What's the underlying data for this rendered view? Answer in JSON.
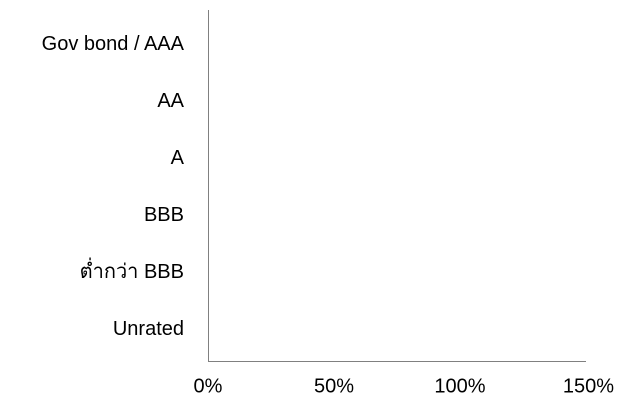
{
  "chart_data": {
    "type": "bar",
    "orientation": "horizontal",
    "categories": [
      "Gov bond / AAA",
      "AA",
      "A",
      "BBB",
      "ต่ำกว่า BBB",
      "Unrated"
    ],
    "series": [
      {
        "values": [
          0,
          0,
          0,
          0,
          0,
          0
        ]
      }
    ],
    "xlim": [
      0,
      1.5
    ],
    "x_ticks": [
      0,
      0.5,
      1.0,
      1.5
    ],
    "x_tick_labels": [
      "0%",
      "50%",
      "100%",
      "150%"
    ],
    "title": "",
    "xlabel": "",
    "ylabel": "",
    "grid": false,
    "legend": "none",
    "colors": {
      "axis": "#808080",
      "text": "#000000",
      "bar": "#4f81bd"
    }
  }
}
